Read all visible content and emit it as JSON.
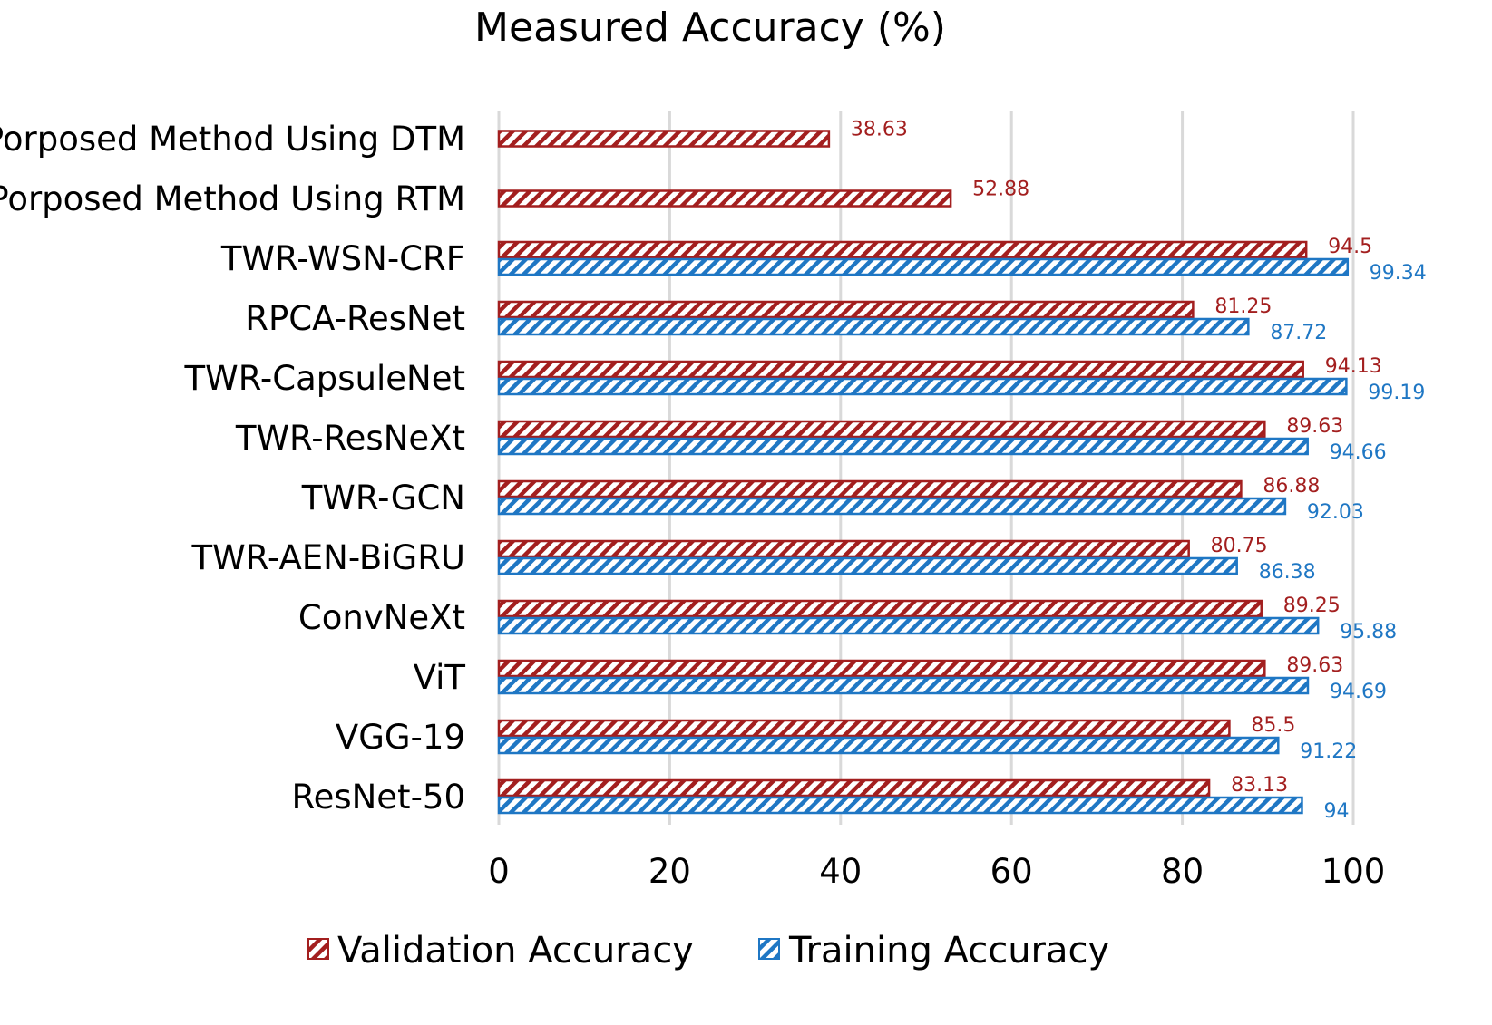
{
  "chart_data": {
    "type": "bar",
    "orientation": "horizontal",
    "title": "Measured Accuracy (%)",
    "xlabel": "",
    "ylabel": "",
    "xlim": [
      0,
      100
    ],
    "x_ticks": [
      0,
      20,
      40,
      60,
      80,
      100
    ],
    "grid": true,
    "legend_position": "bottom",
    "categories": [
      "Porposed Method Using DTM",
      "Porposed Method Using RTM",
      "TWR-WSN-CRF",
      "RPCA-ResNet",
      "TWR-CapsuleNet",
      "TWR-ResNeXt",
      "TWR-GCN",
      "TWR-AEN-BiGRU",
      "ConvNeXt",
      "ViT",
      "VGG-19",
      "ResNet-50"
    ],
    "series": [
      {
        "name": "Validation Accuracy",
        "color": "#a31f1f",
        "values": [
          38.63,
          52.88,
          94.5,
          81.25,
          94.13,
          89.63,
          86.88,
          80.75,
          89.25,
          89.63,
          85.5,
          83.13
        ],
        "labels": [
          "38.63",
          "52.88",
          "94.5",
          "81.25",
          "94.13",
          "89.63",
          "86.88",
          "80.75",
          "89.25",
          "89.63",
          "85.5",
          "83.13"
        ]
      },
      {
        "name": "Training Accuracy",
        "color": "#1f77c4",
        "values": [
          null,
          null,
          99.34,
          87.72,
          99.19,
          94.66,
          92.03,
          86.38,
          95.88,
          94.69,
          91.22,
          94
        ],
        "labels": [
          "",
          "",
          "99.34",
          "87.72",
          "99.19",
          "94.66",
          "92.03",
          "86.38",
          "95.88",
          "94.69",
          "91.22",
          "94"
        ]
      }
    ]
  }
}
